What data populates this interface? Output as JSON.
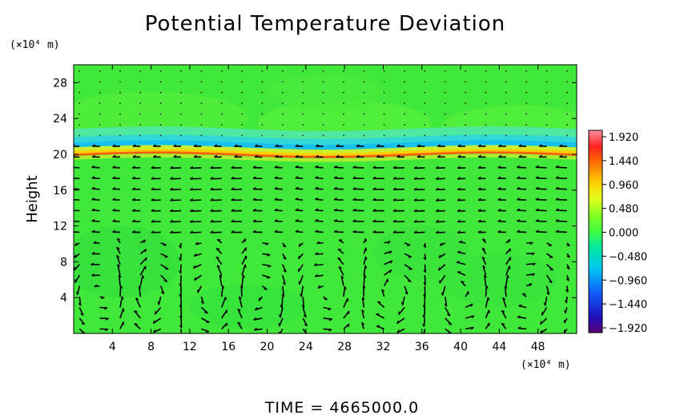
{
  "chart_data": {
    "type": "heatmap",
    "title": "Potential Temperature Deviation",
    "ylabel": "Height",
    "xunit": "(×10⁴ m)",
    "yunit": "(×10⁴ m)",
    "xlim": [
      0,
      52
    ],
    "ylim": [
      0,
      30
    ],
    "xticks": [
      "4",
      "8",
      "12",
      "16",
      "20",
      "24",
      "28",
      "32",
      "36",
      "40",
      "44",
      "48"
    ],
    "yticks": [
      "4",
      "8",
      "12",
      "16",
      "20",
      "24",
      "28"
    ],
    "colorbar": {
      "labels": [
        "1.920",
        "1.440",
        "0.960",
        "0.480",
        "0.000",
        "−0.480",
        "−0.960",
        "−1.440",
        "−1.920"
      ],
      "range": [
        -1.92,
        1.92
      ]
    },
    "background_value": 0.0,
    "inversion_band": {
      "description_values": [
        {
          "height": 21.0,
          "value": -0.7
        },
        {
          "height": 20.4,
          "value": 0.9
        },
        {
          "height": 19.9,
          "value": 1.6
        }
      ]
    },
    "vector_field": {
      "x_spacing": 2.1,
      "y_spacing": 1.2,
      "circulation_cells_x": [
        3,
        8,
        14,
        19,
        26,
        33,
        40,
        47
      ],
      "circulation_top_height": 10
    },
    "footer": "TIME  =  4665000.0"
  }
}
